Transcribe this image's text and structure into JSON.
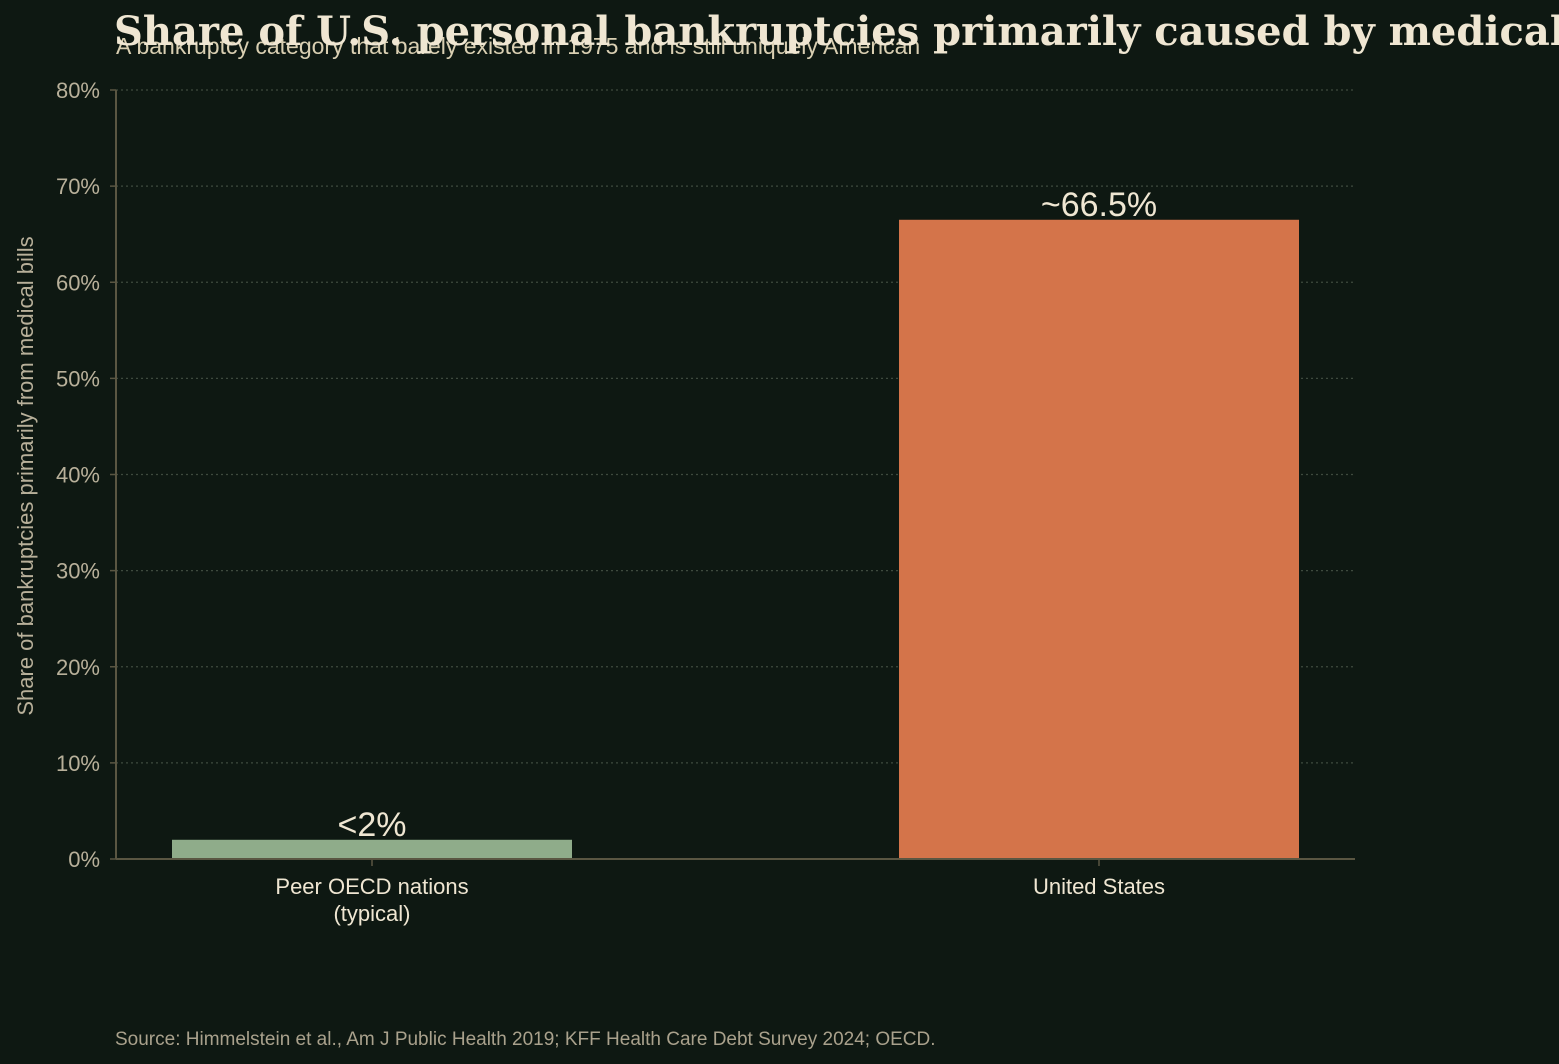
{
  "chart_data": {
    "type": "bar",
    "title": "Share of U.S. personal bankruptcies primarily caused by medical bills",
    "subtitle": "A bankruptcy category that barely existed in 1975 and is still uniquely American",
    "xlabel": "",
    "ylabel": "Share of bankruptcies primarily from medical bills",
    "categories": [
      "Peer OECD nations\n(typical)",
      "United States"
    ],
    "values": [
      2,
      66.5
    ],
    "value_labels": [
      "<2%",
      "~66.5%"
    ],
    "bar_colors": [
      "#8fac8a",
      "#d4744a"
    ],
    "ylim": [
      0,
      80
    ],
    "yticks": [
      0,
      10,
      20,
      30,
      40,
      50,
      60,
      70,
      80
    ],
    "ytick_labels": [
      "0%",
      "10%",
      "20%",
      "30%",
      "40%",
      "50%",
      "60%",
      "70%",
      "80%"
    ],
    "grid": "horizontal dotted",
    "source": "Source: Himmelstein et al., Am J Public Health 2019; KFF Health Care Debt Survey 2024; OECD."
  },
  "colors": {
    "background": "#0e1812",
    "title": "#efe6d2",
    "subtitle": "#d9cfb2",
    "tick_text": "#b8b09a",
    "category_text": "#efe6d2",
    "label_text": "#efe6d2",
    "axis": "#5a5642",
    "grid": "#3e4a3e",
    "source_text": "#a9a18c"
  }
}
